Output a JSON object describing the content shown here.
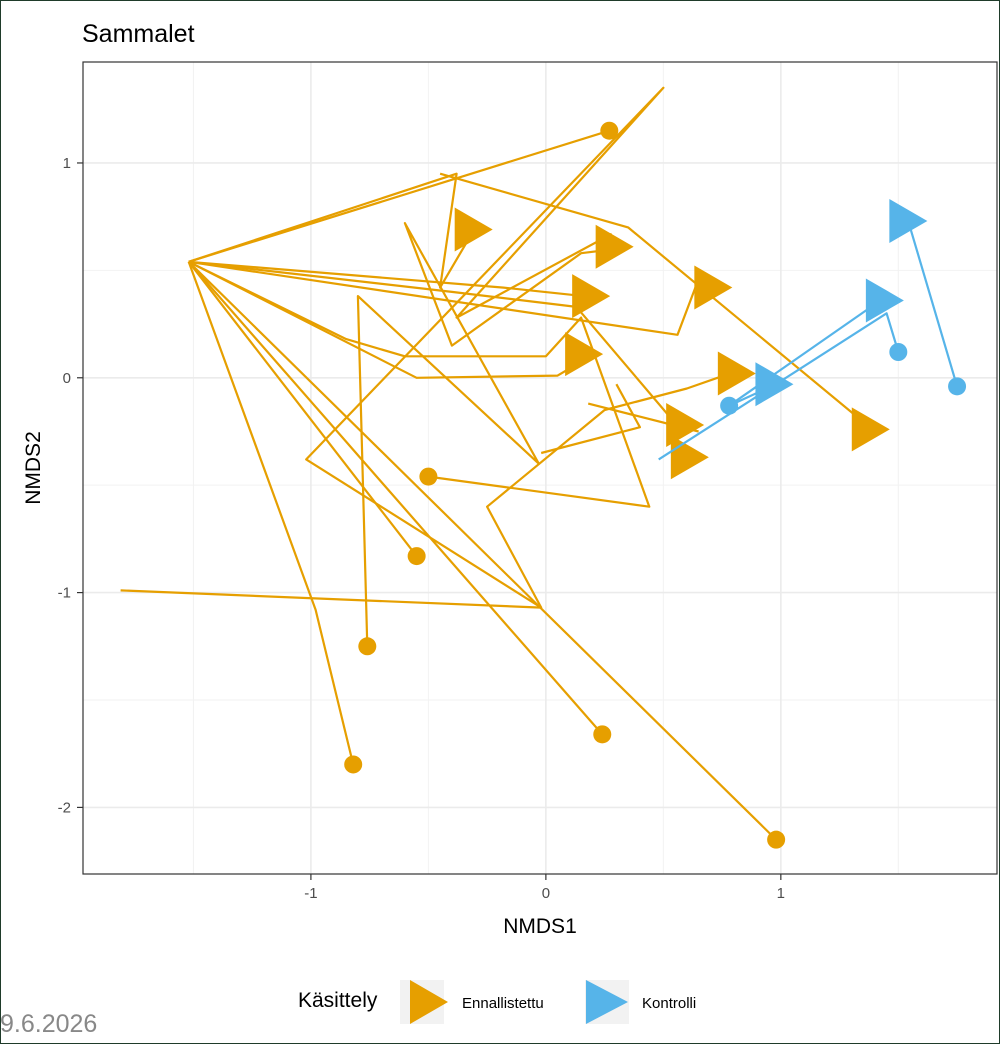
{
  "chart_data": {
    "type": "scatter",
    "title": "Sammalet",
    "xlabel": "NMDS1",
    "ylabel": "NMDS2",
    "xlim": [
      -1.97,
      1.92
    ],
    "ylim": [
      -2.31,
      1.47
    ],
    "x_ticks": [
      -1,
      0,
      1
    ],
    "y_ticks": [
      -2,
      -1,
      0,
      1
    ],
    "grid": true,
    "legend": {
      "title": "Käsittely",
      "position": "bottom",
      "entries": [
        "Ennallistettu",
        "Kontrolli"
      ]
    },
    "series": [
      {
        "name": "Ennallistettu",
        "color": "#E69F00",
        "paths": [
          [
            [
              -1.52,
              0.54
            ],
            [
              -0.38,
              0.95
            ],
            [
              -0.45,
              0.42
            ],
            [
              -0.3,
              0.7
            ]
          ],
          [
            [
              -1.52,
              0.54
            ],
            [
              0.27,
              1.15
            ]
          ],
          [
            [
              -1.52,
              0.54
            ],
            [
              -0.98,
              -1.08
            ],
            [
              -0.82,
              -1.8
            ]
          ],
          [
            [
              -1.52,
              0.54
            ],
            [
              -0.4,
              0.4
            ],
            [
              0.13,
              0.33
            ],
            [
              0.58,
              -0.25
            ]
          ],
          [
            [
              -1.52,
              0.54
            ],
            [
              -0.85,
              0.18
            ],
            [
              -0.6,
              0.1
            ],
            [
              0.0,
              0.1
            ],
            [
              0.15,
              0.28
            ],
            [
              0.44,
              -0.6
            ],
            [
              -0.5,
              -0.46
            ]
          ],
          [
            [
              -1.52,
              0.54
            ],
            [
              -0.55,
              0.0
            ],
            [
              0.05,
              0.01
            ],
            [
              0.22,
              0.12
            ]
          ],
          [
            [
              -1.52,
              0.54
            ],
            [
              -0.18,
              0.42
            ],
            [
              0.25,
              0.37
            ]
          ],
          [
            [
              -1.52,
              0.54
            ],
            [
              0.24,
              -1.66
            ]
          ],
          [
            [
              -1.52,
              0.54
            ],
            [
              0.98,
              -2.15
            ]
          ],
          [
            [
              -1.52,
              0.54
            ],
            [
              -0.55,
              -0.83
            ]
          ],
          [
            [
              -1.81,
              -0.99
            ],
            [
              -0.02,
              -1.07
            ],
            [
              -1.02,
              -0.38
            ],
            [
              0.5,
              1.35
            ],
            [
              -0.38,
              0.28
            ],
            [
              0.28,
              0.67
            ]
          ],
          [
            [
              -0.76,
              -1.25
            ],
            [
              -0.8,
              0.38
            ],
            [
              -0.03,
              -0.4
            ],
            [
              -0.6,
              0.72
            ],
            [
              -0.4,
              0.15
            ],
            [
              0.15,
              0.58
            ],
            [
              0.3,
              0.6
            ]
          ],
          [
            [
              -0.02,
              -1.07
            ],
            [
              -0.25,
              -0.6
            ],
            [
              0.25,
              -0.15
            ],
            [
              0.6,
              -0.05
            ],
            [
              0.81,
              0.03
            ]
          ],
          [
            [
              0.18,
              -0.12
            ],
            [
              0.65,
              -0.25
            ]
          ],
          [
            [
              -0.02,
              -0.35
            ],
            [
              0.4,
              -0.23
            ],
            [
              0.3,
              -0.03
            ]
          ],
          [
            [
              -1.52,
              0.54
            ],
            [
              0.56,
              0.2
            ],
            [
              0.65,
              0.46
            ]
          ],
          [
            [
              -0.45,
              0.95
            ],
            [
              0.35,
              0.7
            ],
            [
              1.4,
              -0.25
            ]
          ]
        ],
        "start_points": [
          [
            0.27,
            1.15
          ],
          [
            -0.5,
            -0.46
          ],
          [
            -0.55,
            -0.83
          ],
          [
            -0.76,
            -1.25
          ],
          [
            -0.82,
            -1.8
          ],
          [
            0.24,
            -1.66
          ],
          [
            0.98,
            -2.15
          ]
        ],
        "end_points": [
          [
            -0.32,
            0.69
          ],
          [
            0.28,
            0.61
          ],
          [
            0.18,
            0.38
          ],
          [
            0.15,
            0.11
          ],
          [
            0.8,
            0.02
          ],
          [
            0.58,
            -0.22
          ],
          [
            0.6,
            -0.37
          ],
          [
            0.7,
            0.42
          ],
          [
            1.37,
            -0.24
          ]
        ]
      },
      {
        "name": "Kontrolli",
        "color": "#56B4E9",
        "paths": [
          [
            [
              1.5,
              0.12
            ],
            [
              1.45,
              0.3
            ],
            [
              0.48,
              -0.38
            ]
          ],
          [
            [
              0.78,
              -0.13
            ],
            [
              1.45,
              0.38
            ]
          ],
          [
            [
              1.75,
              -0.04
            ],
            [
              1.55,
              0.7
            ]
          ],
          [
            [
              0.78,
              -0.13
            ],
            [
              0.98,
              -0.03
            ]
          ]
        ],
        "start_points": [
          [
            1.5,
            0.12
          ],
          [
            0.78,
            -0.13
          ],
          [
            1.75,
            -0.04
          ]
        ],
        "end_points": [
          [
            1.43,
            0.36
          ],
          [
            0.96,
            -0.03
          ],
          [
            1.53,
            0.73
          ]
        ]
      }
    ]
  },
  "footer": {
    "date": "9.6.2026"
  }
}
